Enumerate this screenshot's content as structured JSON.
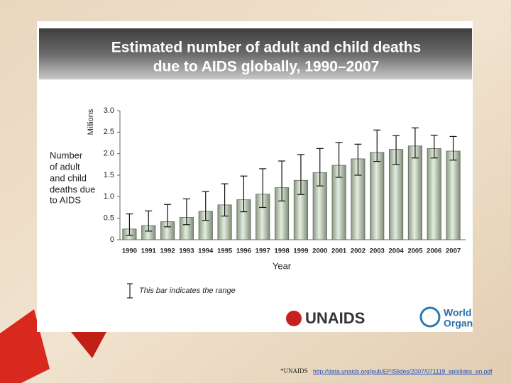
{
  "chart_data": {
    "type": "bar",
    "title": [
      "Estimated number of adult and child deaths",
      "due to AIDS globally, 1990–2007"
    ],
    "ylabel": [
      "Number",
      "of adult",
      "and child",
      "deaths due",
      "to AIDS"
    ],
    "yunit": "Millions",
    "xlabel": "Year",
    "categories": [
      "1990",
      "1991",
      "1992",
      "1993",
      "1994",
      "1995",
      "1996",
      "1997",
      "1998",
      "1999",
      "2000",
      "2001",
      "2002",
      "2003",
      "2004",
      "2005",
      "2006",
      "2007"
    ],
    "values": [
      0.25,
      0.33,
      0.42,
      0.52,
      0.66,
      0.81,
      0.93,
      1.06,
      1.21,
      1.38,
      1.56,
      1.73,
      1.88,
      2.03,
      2.1,
      2.18,
      2.12,
      2.06
    ],
    "range_low": [
      0.1,
      0.2,
      0.3,
      0.35,
      0.45,
      0.55,
      0.65,
      0.75,
      0.9,
      1.05,
      1.25,
      1.45,
      1.5,
      1.82,
      1.75,
      1.9,
      1.9,
      1.85
    ],
    "range_high": [
      0.6,
      0.67,
      0.82,
      0.95,
      1.12,
      1.3,
      1.48,
      1.65,
      1.83,
      1.98,
      2.12,
      2.26,
      2.22,
      2.55,
      2.42,
      2.6,
      2.43,
      2.4
    ],
    "color": "#c5d3bd",
    "ylim": [
      0,
      3
    ],
    "yticks": [
      0,
      {
        "value": 0.5,
        "label": "0.5"
      },
      {
        "value": 1,
        "label": "1.0"
      },
      {
        "value": 1.5,
        "label": "1.5"
      },
      {
        "value": 2,
        "label": "2.0"
      },
      {
        "value": 2.5,
        "label": "2.5"
      },
      {
        "value": 3,
        "label": "3.0"
      }
    ],
    "range_note": "This bar indicates the range"
  },
  "slide": {
    "logo_unaids": "UNAIDS",
    "logo_who": [
      "World Health",
      "Organization"
    ],
    "footnote_prefix": "*UNAIDS",
    "footnote_link": "http://data.unaids.org/pub/EPISlides/2007/071119_epislides_en.pdf"
  }
}
